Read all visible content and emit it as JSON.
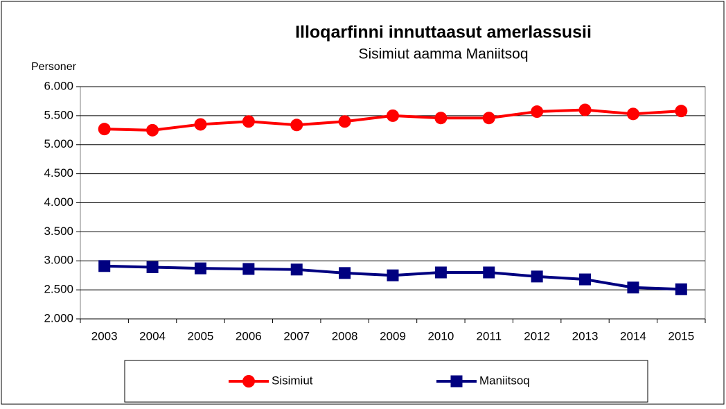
{
  "chart_data": {
    "type": "line",
    "title": "Illoqarfinni innuttaasut amerlassusii",
    "subtitle": "Sisimiut aamma Maniitsoq",
    "y_label": "Personer",
    "categories": [
      "2003",
      "2004",
      "2005",
      "2006",
      "2007",
      "2008",
      "2009",
      "2010",
      "2011",
      "2012",
      "2013",
      "2014",
      "2015"
    ],
    "series": [
      {
        "name": "Sisimiut",
        "color": "#ff0000",
        "marker": "circle",
        "values": [
          5270,
          5250,
          5350,
          5400,
          5340,
          5400,
          5500,
          5460,
          5460,
          5570,
          5600,
          5530,
          5580
        ]
      },
      {
        "name": "Maniitsoq",
        "color": "#000080",
        "marker": "square",
        "values": [
          2910,
          2890,
          2870,
          2860,
          2850,
          2790,
          2750,
          2800,
          2800,
          2730,
          2680,
          2540,
          2510
        ]
      }
    ],
    "ylim": [
      2000,
      6000
    ],
    "yticks": [
      {
        "value": 2000,
        "label": "2.000"
      },
      {
        "value": 2500,
        "label": "2.500"
      },
      {
        "value": 3000,
        "label": "3.000"
      },
      {
        "value": 3500,
        "label": "3.500"
      },
      {
        "value": 4000,
        "label": "4.000"
      },
      {
        "value": 4500,
        "label": "4.500"
      },
      {
        "value": 5000,
        "label": "5.000"
      },
      {
        "value": 5500,
        "label": "5.500"
      },
      {
        "value": 6000,
        "label": "6.000"
      }
    ],
    "grid": true,
    "legend": "bottom"
  }
}
